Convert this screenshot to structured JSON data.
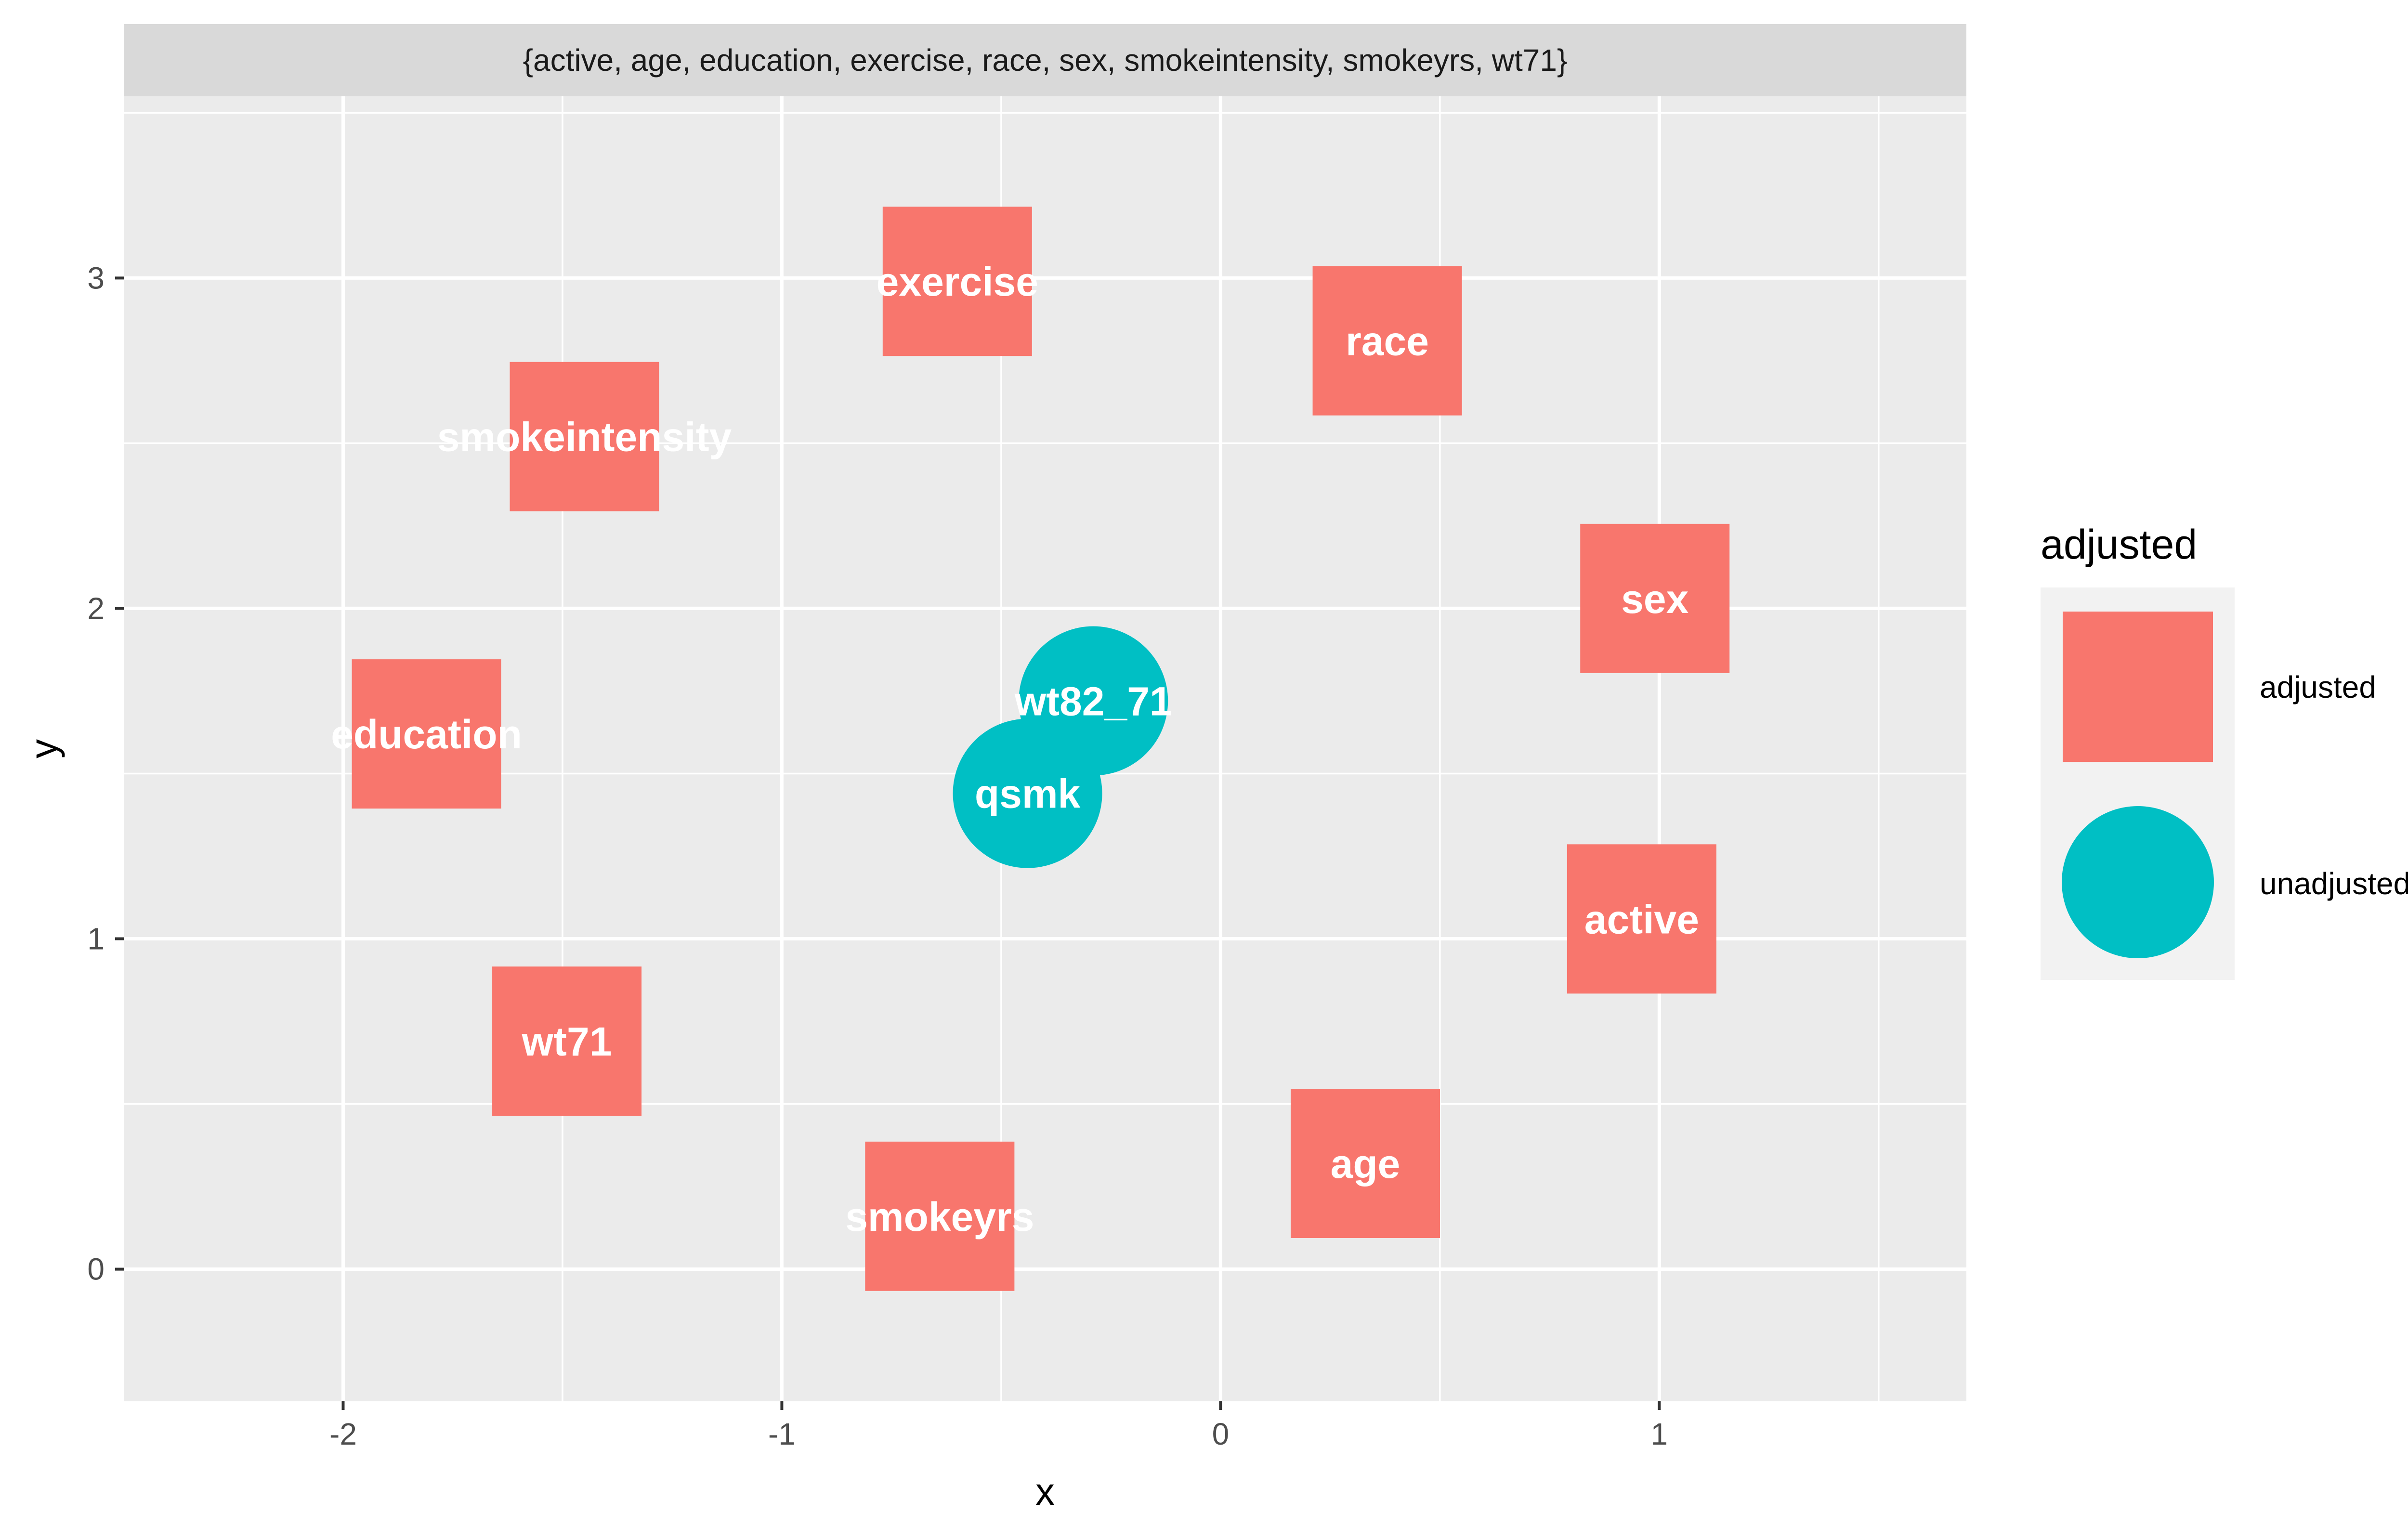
{
  "chart_data": {
    "type": "scatter",
    "facet_label": "{active, age, education, exercise, race, sex, smokeintensity, smokeyrs, wt71}",
    "xlabel": "x",
    "ylabel": "y",
    "xlim": [
      -2.5,
      1.7
    ],
    "ylim": [
      -0.4,
      3.55
    ],
    "x_ticks": [
      -2,
      -1,
      0,
      1
    ],
    "x_tick_labels": [
      "-2",
      "-1",
      "0",
      "1"
    ],
    "y_ticks": [
      0,
      1,
      2,
      3
    ],
    "y_tick_labels": [
      "0",
      "1",
      "2",
      "3"
    ],
    "grid": true,
    "legend": {
      "title": "adjusted",
      "position": "right",
      "entries": [
        {
          "label": "adjusted",
          "shape": "square",
          "color": "#F8766D"
        },
        {
          "label": "unadjusted",
          "shape": "circle",
          "color": "#00BFC4"
        }
      ]
    },
    "points": [
      {
        "name": "exercise",
        "x": -0.6,
        "y": 2.99,
        "group": "adjusted"
      },
      {
        "name": "race",
        "x": 0.38,
        "y": 2.81,
        "group": "adjusted"
      },
      {
        "name": "smokeintensity",
        "x": -1.45,
        "y": 2.52,
        "group": "adjusted"
      },
      {
        "name": "sex",
        "x": 0.99,
        "y": 2.03,
        "group": "adjusted"
      },
      {
        "name": "education",
        "x": -1.81,
        "y": 1.62,
        "group": "adjusted"
      },
      {
        "name": "active",
        "x": 0.96,
        "y": 1.06,
        "group": "adjusted"
      },
      {
        "name": "wt71",
        "x": -1.49,
        "y": 0.69,
        "group": "adjusted"
      },
      {
        "name": "age",
        "x": 0.33,
        "y": 0.32,
        "group": "adjusted"
      },
      {
        "name": "smokeyrs",
        "x": -0.64,
        "y": 0.16,
        "group": "adjusted"
      },
      {
        "name": "wt82_71",
        "x": -0.29,
        "y": 1.72,
        "group": "unadjusted"
      },
      {
        "name": "qsmk",
        "x": -0.44,
        "y": 1.44,
        "group": "unadjusted"
      }
    ]
  },
  "colors": {
    "adjusted": "#F8766D",
    "unadjusted": "#00BFC4",
    "panel_background": "#EBEBEB",
    "strip_background": "#D9D9D9",
    "grid": "#FFFFFF"
  }
}
